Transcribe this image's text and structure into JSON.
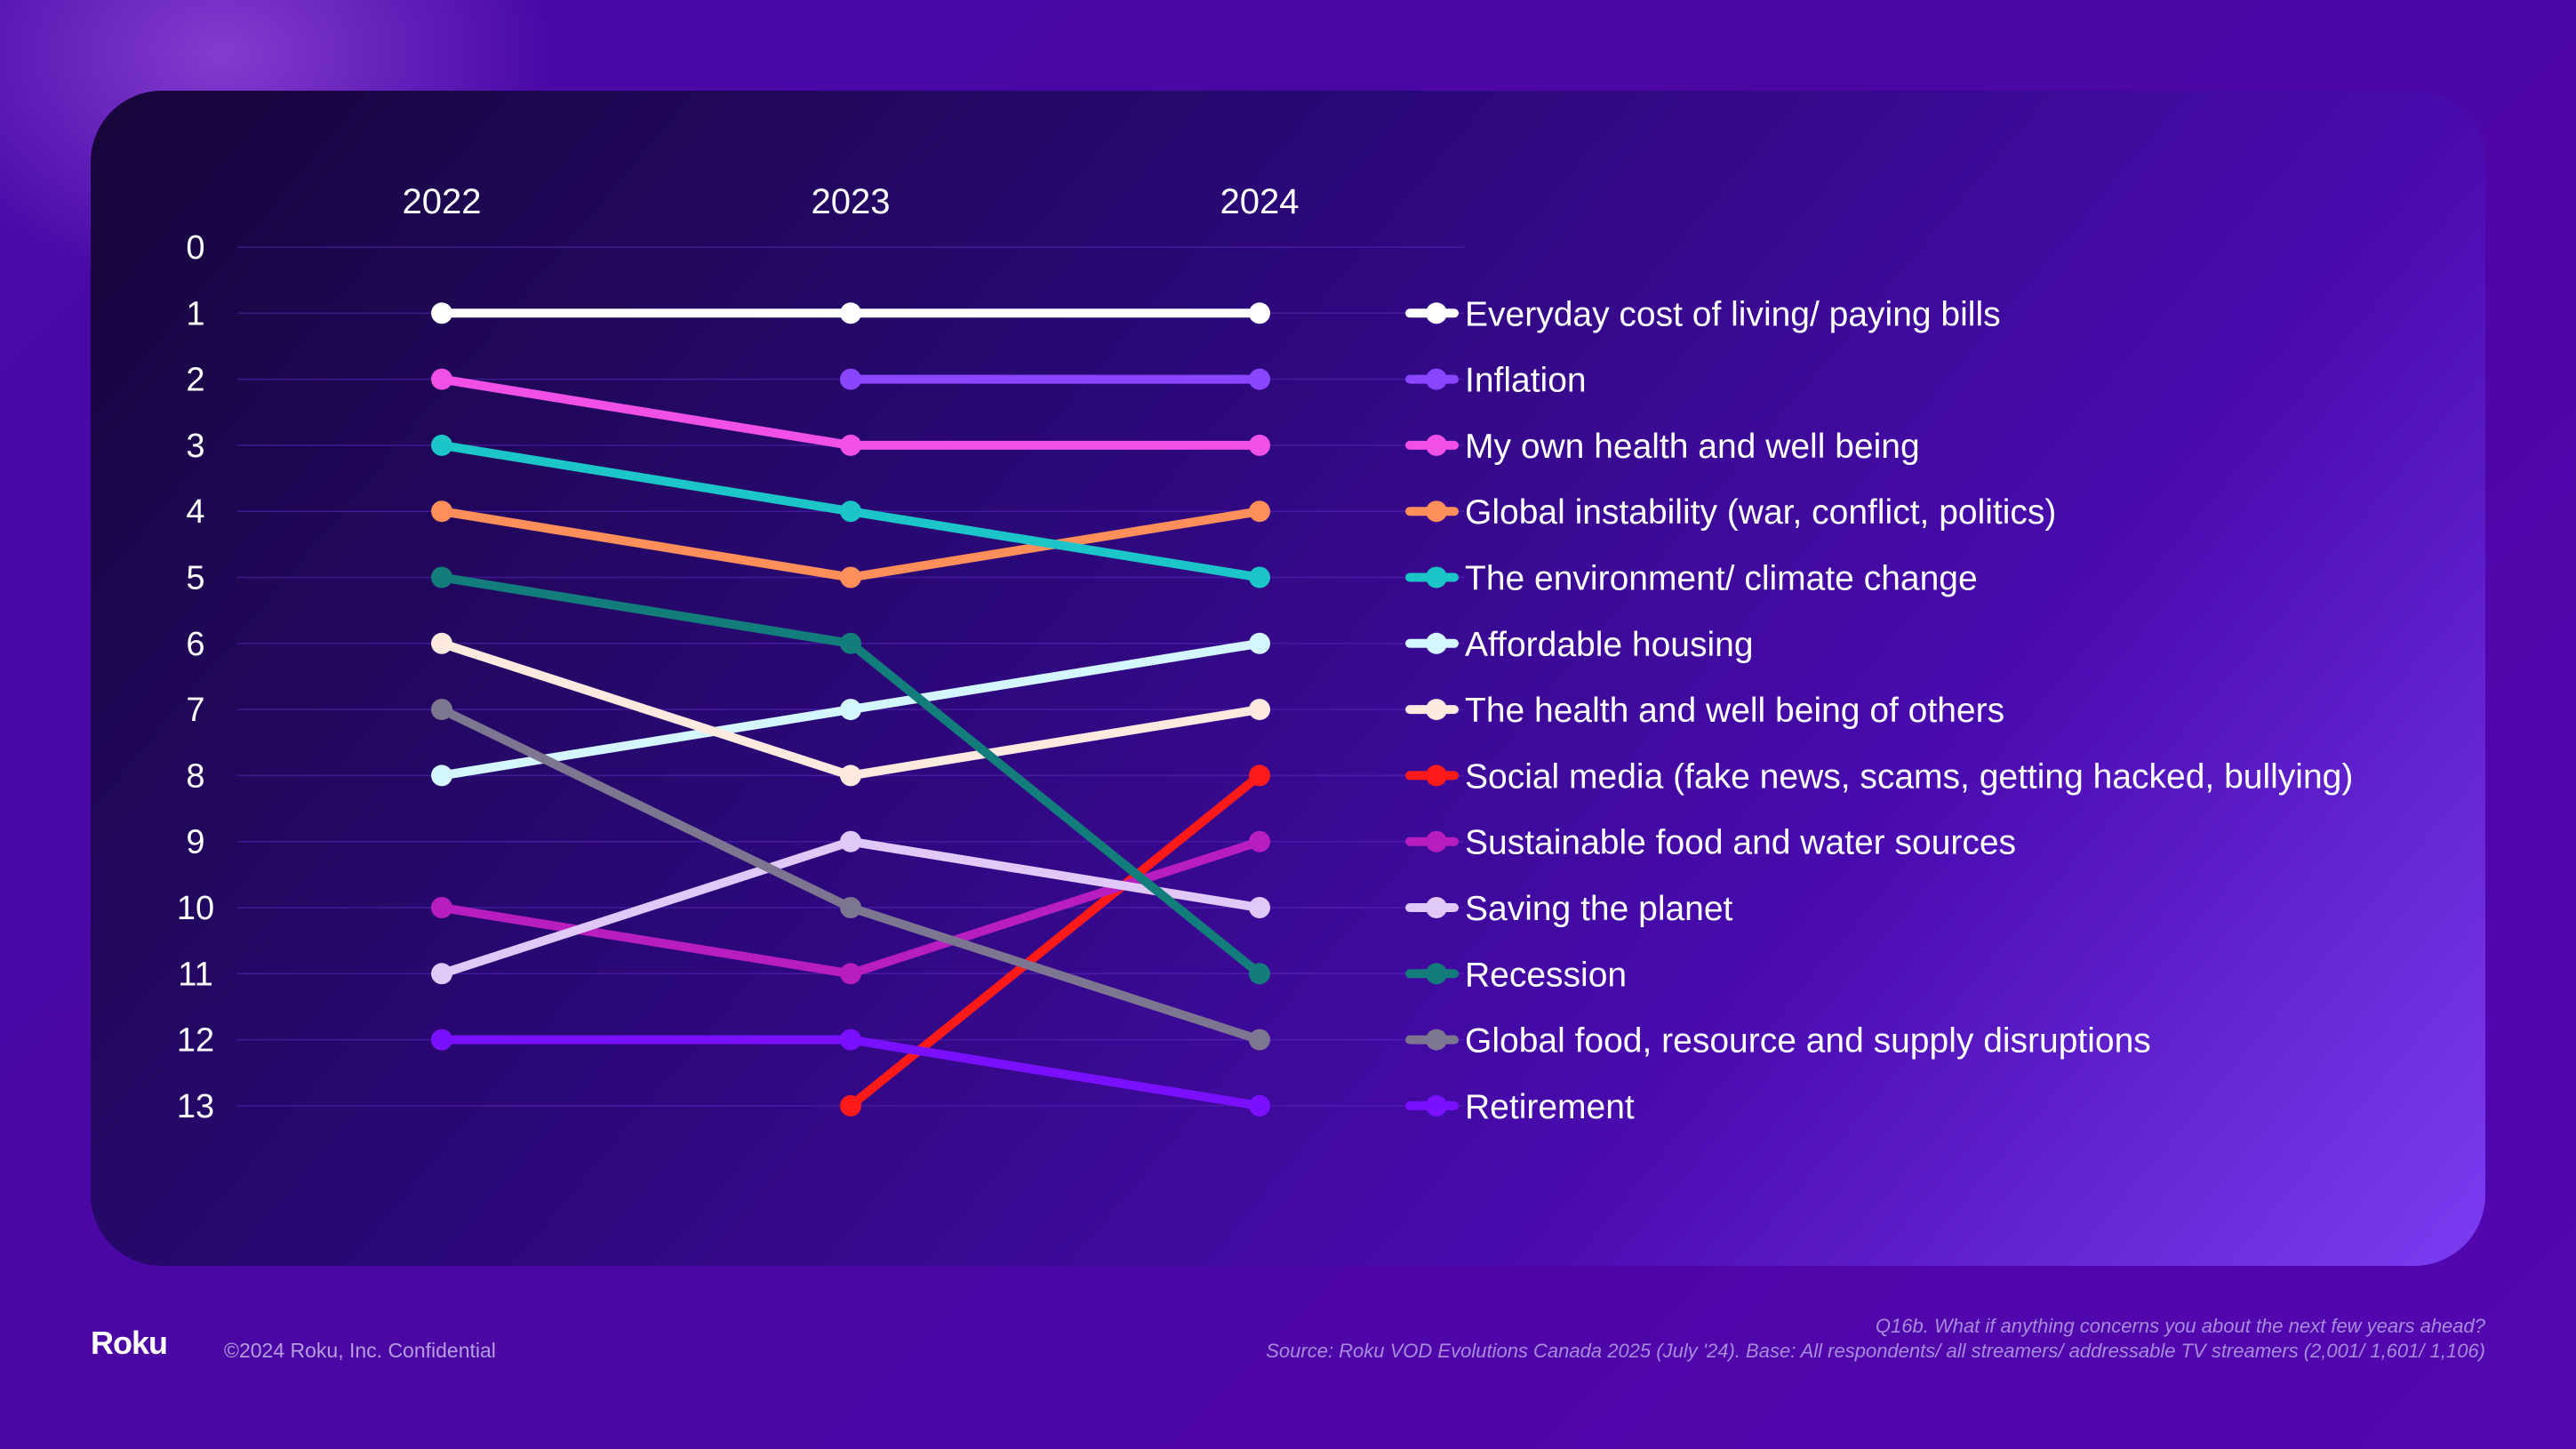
{
  "chart_data": {
    "type": "line",
    "title": "",
    "xlabel": "",
    "ylabel": "",
    "x": [
      "2022",
      "2023",
      "2024"
    ],
    "ylim": [
      0,
      13
    ],
    "y_inverted": true,
    "y_ticks": [
      0,
      1,
      2,
      3,
      4,
      5,
      6,
      7,
      8,
      9,
      10,
      11,
      12,
      13
    ],
    "grid": true,
    "legend_position": "right",
    "series": [
      {
        "name": "Everyday cost of living/ paying bills",
        "color": "#ffffff",
        "values": [
          1,
          1,
          1
        ]
      },
      {
        "name": "Inflation",
        "color": "#8a45ff",
        "values": [
          null,
          2,
          2
        ]
      },
      {
        "name": "My own health and well being",
        "color": "#f050e6",
        "values": [
          2,
          3,
          3
        ]
      },
      {
        "name": "Global instability (war, conflict, politics)",
        "color": "#ff8f5a",
        "values": [
          4,
          5,
          4
        ]
      },
      {
        "name": "The environment/ climate change",
        "color": "#1cc6c8",
        "values": [
          3,
          4,
          5
        ]
      },
      {
        "name": "Affordable housing",
        "color": "#d4f6ff",
        "values": [
          8,
          7,
          6
        ]
      },
      {
        "name": "The health and well being of others",
        "color": "#ffeae0",
        "values": [
          6,
          8,
          7
        ]
      },
      {
        "name": "Social media (fake news, scams, getting hacked, bullying)",
        "color": "#ff1a1a",
        "values": [
          null,
          13,
          8
        ]
      },
      {
        "name": "Sustainable food and water sources",
        "color": "#b81dc0",
        "values": [
          10,
          11,
          9
        ]
      },
      {
        "name": "Saving the planet",
        "color": "#e0c8f8",
        "values": [
          11,
          9,
          10
        ]
      },
      {
        "name": "Recession",
        "color": "#137d7b",
        "values": [
          5,
          6,
          11
        ]
      },
      {
        "name": "Global food, resource and supply disruptions",
        "color": "#7d7690",
        "values": [
          7,
          10,
          12
        ]
      },
      {
        "name": "Retirement",
        "color": "#7a10ff",
        "values": [
          12,
          12,
          13
        ]
      }
    ]
  },
  "footer": {
    "logo": "Roku",
    "copyright": "©2024 Roku, Inc. Confidential",
    "question": "Q16b. What if anything concerns you about the next few years ahead?",
    "source": "Source: Roku VOD Evolutions Canada 2025 (July '24). Base: All respondents/ all streamers/ addressable TV streamers (2,001/ 1,601/ 1,106)"
  }
}
